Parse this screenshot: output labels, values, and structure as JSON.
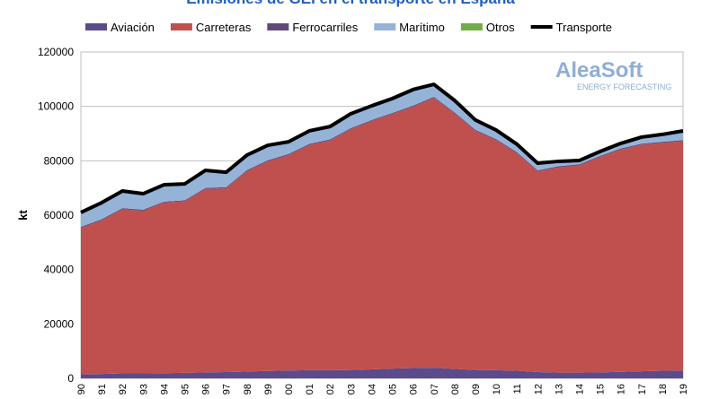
{
  "chart_data": {
    "type": "stacked-area",
    "title": "Emisiones de GEI en el transporte en España",
    "ylabel": "kt",
    "watermark": [
      "AleaSoft",
      "ENERGY FORECASTING"
    ],
    "categories": [
      "1990",
      "1991",
      "1992",
      "1993",
      "1994",
      "1995",
      "1996",
      "1997",
      "1998",
      "1999",
      "2000",
      "2001",
      "2002",
      "2003",
      "2004",
      "2005",
      "2006",
      "2007",
      "2008",
      "2009",
      "2010",
      "2011",
      "2012",
      "2013",
      "2014",
      "2015",
      "2016",
      "2017",
      "2018",
      "2019"
    ],
    "ylim": [
      0,
      120000
    ],
    "yticks": [
      0,
      20000,
      40000,
      60000,
      80000,
      100000,
      120000
    ],
    "grid": true,
    "series": [
      {
        "name": "Aviación",
        "color": "#5b4b8a",
        "values": [
          1500,
          1600,
          1800,
          1800,
          1900,
          2000,
          2200,
          2300,
          2500,
          2700,
          2900,
          3000,
          3000,
          3100,
          3300,
          3600,
          3800,
          3900,
          3500,
          3100,
          3000,
          2800,
          2300,
          2100,
          2100,
          2200,
          2400,
          2600,
          2800,
          2900
        ]
      },
      {
        "name": "Carreteras",
        "color": "#c0504d",
        "values": [
          53800,
          56500,
          60400,
          59800,
          62700,
          63100,
          67400,
          67600,
          73700,
          77100,
          79200,
          82800,
          84500,
          88500,
          91300,
          93600,
          96100,
          99200,
          93900,
          87900,
          84600,
          80000,
          73800,
          75500,
          76200,
          79200,
          81700,
          83300,
          83800,
          84300
        ]
      },
      {
        "name": "Ferrocarriles",
        "color": "#604a7b",
        "values": [
          400,
          400,
          400,
          400,
          400,
          400,
          400,
          400,
          400,
          400,
          400,
          400,
          400,
          400,
          400,
          400,
          400,
          400,
          400,
          400,
          400,
          400,
          400,
          400,
          400,
          400,
          400,
          400,
          400,
          400
        ]
      },
      {
        "name": "Marítimo",
        "color": "#95b3d7",
        "values": [
          5200,
          6000,
          6200,
          5800,
          6100,
          5900,
          6400,
          5400,
          5400,
          5400,
          4400,
          4700,
          4600,
          5200,
          5100,
          5200,
          5800,
          4500,
          4300,
          3500,
          3200,
          2800,
          2500,
          1700,
          1300,
          1500,
          1800,
          2300,
          2600,
          3300
        ]
      },
      {
        "name": "Otros",
        "color": "#70ad47",
        "values": [
          100,
          100,
          100,
          100,
          100,
          100,
          100,
          100,
          100,
          100,
          100,
          100,
          100,
          100,
          100,
          100,
          100,
          100,
          100,
          100,
          100,
          100,
          100,
          100,
          100,
          100,
          100,
          100,
          100,
          100
        ]
      },
      {
        "name": "Transporte",
        "color": "#000000",
        "type": "line",
        "values": [
          61000,
          64600,
          68900,
          67900,
          71200,
          71500,
          76500,
          75800,
          82100,
          85700,
          87000,
          91000,
          92600,
          97300,
          100200,
          102900,
          106200,
          108100,
          102200,
          95000,
          91300,
          86100,
          79100,
          79800,
          80100,
          83400,
          86400,
          88700,
          89700,
          91000
        ]
      }
    ]
  }
}
